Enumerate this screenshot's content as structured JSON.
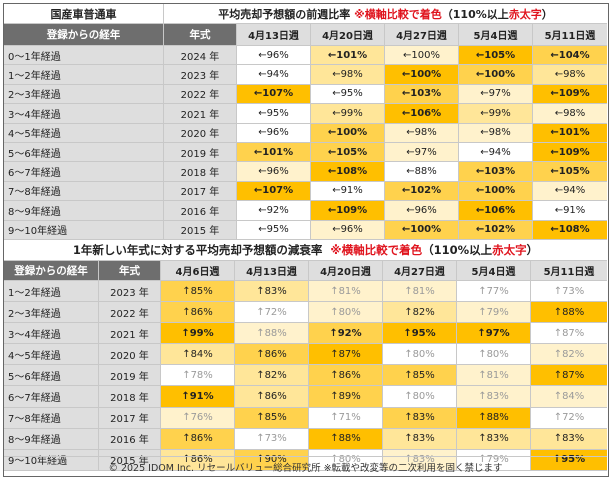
{
  "colors": {
    "header_gray": "#6e6e6e",
    "label_gray": "#dedede",
    "red_accent": "#e0141e",
    "level_0": "#ffffff",
    "level_1": "#fff2cc",
    "level_2": "#ffe699",
    "level_3": "#ffd24d",
    "level_4": "#ffbf00"
  },
  "top": {
    "title_left": "国産車普通車",
    "title_main": "平均売却予想額の前週比率",
    "title_note": "※横軸比較で着色",
    "title_paren_open": "（110%以上 ",
    "title_red": "赤太字",
    "title_paren_close": "）",
    "header": {
      "col1": "登録からの経年",
      "col2": "年式",
      "weeks": [
        "4月13日週",
        "4月20日週",
        "4月27日週",
        "5月4日週",
        "5月11日週"
      ]
    },
    "rows": [
      {
        "age": "0～1年経過",
        "year": "2024 年",
        "cells": [
          [
            "←96%",
            0,
            0
          ],
          [
            "←101%",
            2,
            1
          ],
          [
            "←100%",
            1,
            0
          ],
          [
            "←105%",
            4,
            1
          ],
          [
            "←104%",
            3,
            1
          ]
        ]
      },
      {
        "age": "1～2年経過",
        "year": "2023 年",
        "cells": [
          [
            "←94%",
            0,
            0
          ],
          [
            "←98%",
            2,
            0
          ],
          [
            "←100%",
            4,
            1
          ],
          [
            "←100%",
            3,
            1
          ],
          [
            "←98%",
            2,
            0
          ]
        ]
      },
      {
        "age": "2～3年経過",
        "year": "2022 年",
        "cells": [
          [
            "←107%",
            4,
            1
          ],
          [
            "←95%",
            0,
            0
          ],
          [
            "←103%",
            3,
            1
          ],
          [
            "←97%",
            1,
            0
          ],
          [
            "←109%",
            4,
            1
          ]
        ]
      },
      {
        "age": "3～4年経過",
        "year": "2021 年",
        "cells": [
          [
            "←95%",
            0,
            0
          ],
          [
            "←99%",
            2,
            0
          ],
          [
            "←106%",
            4,
            1
          ],
          [
            "←99%",
            2,
            0
          ],
          [
            "←98%",
            1,
            0
          ]
        ]
      },
      {
        "age": "4～5年経過",
        "year": "2020 年",
        "cells": [
          [
            "←96%",
            0,
            0
          ],
          [
            "←100%",
            3,
            1
          ],
          [
            "←98%",
            1,
            0
          ],
          [
            "←98%",
            1,
            0
          ],
          [
            "←101%",
            4,
            1
          ]
        ]
      },
      {
        "age": "5～6年経過",
        "year": "2019 年",
        "cells": [
          [
            "←101%",
            3,
            1
          ],
          [
            "←105%",
            3,
            1
          ],
          [
            "←97%",
            1,
            0
          ],
          [
            "←94%",
            0,
            0
          ],
          [
            "←109%",
            4,
            1
          ]
        ]
      },
      {
        "age": "6～7年経過",
        "year": "2018 年",
        "cells": [
          [
            "←96%",
            1,
            0
          ],
          [
            "←108%",
            4,
            1
          ],
          [
            "←88%",
            0,
            0
          ],
          [
            "←103%",
            3,
            1
          ],
          [
            "←105%",
            3,
            1
          ]
        ]
      },
      {
        "age": "7～8年経過",
        "year": "2017 年",
        "cells": [
          [
            "←107%",
            4,
            1
          ],
          [
            "←91%",
            0,
            0
          ],
          [
            "←102%",
            3,
            1
          ],
          [
            "←100%",
            3,
            1
          ],
          [
            "←94%",
            1,
            0
          ]
        ]
      },
      {
        "age": "8～9年経過",
        "year": "2016 年",
        "cells": [
          [
            "←92%",
            0,
            0
          ],
          [
            "←109%",
            4,
            1
          ],
          [
            "←96%",
            1,
            0
          ],
          [
            "←106%",
            4,
            1
          ],
          [
            "←91%",
            0,
            0
          ]
        ]
      },
      {
        "age": "9～10年経過",
        "year": "2015 年",
        "cells": [
          [
            "←95%",
            0,
            0
          ],
          [
            "←96%",
            1,
            0
          ],
          [
            "←100%",
            3,
            1
          ],
          [
            "←102%",
            3,
            1
          ],
          [
            "←108%",
            4,
            1
          ]
        ]
      }
    ]
  },
  "bottom": {
    "title_main": "1年新しい年式に対する平均売却予想額の減衰率",
    "title_note": "※横軸比較で着色",
    "title_paren_open": "（110%以上 ",
    "title_red": "赤太字",
    "title_paren_close": "）",
    "header": {
      "col1": "登録からの経年",
      "col2": "年式",
      "weeks": [
        "4月6日週",
        "4月13日週",
        "4月20日週",
        "4月27日週",
        "5月4日週",
        "5月11日週"
      ]
    },
    "rows": [
      {
        "age": "1～2年経過",
        "year": "2023 年",
        "cells": [
          [
            "↑85%",
            3,
            0
          ],
          [
            "↑83%",
            2,
            0
          ],
          [
            "↑81%",
            1,
            0
          ],
          [
            "↑81%",
            1,
            0
          ],
          [
            "↑77%",
            0,
            0
          ],
          [
            "↑73%",
            0,
            0
          ]
        ]
      },
      {
        "age": "2～3年経過",
        "year": "2022 年",
        "cells": [
          [
            "↑86%",
            3,
            0
          ],
          [
            "↑72%",
            0,
            0
          ],
          [
            "↑80%",
            1,
            0
          ],
          [
            "↑82%",
            2,
            0
          ],
          [
            "↑79%",
            1,
            0
          ],
          [
            "↑88%",
            4,
            0
          ]
        ]
      },
      {
        "age": "3～4年経過",
        "year": "2021 年",
        "cells": [
          [
            "↑99%",
            4,
            1
          ],
          [
            "↑88%",
            1,
            0
          ],
          [
            "↑92%",
            3,
            1
          ],
          [
            "↑95%",
            4,
            1
          ],
          [
            "↑97%",
            4,
            1
          ],
          [
            "↑87%",
            0,
            0
          ]
        ]
      },
      {
        "age": "4～5年経過",
        "year": "2020 年",
        "cells": [
          [
            "↑84%",
            2,
            0
          ],
          [
            "↑86%",
            3,
            0
          ],
          [
            "↑87%",
            4,
            0
          ],
          [
            "↑80%",
            0,
            0
          ],
          [
            "↑80%",
            0,
            0
          ],
          [
            "↑82%",
            1,
            0
          ]
        ]
      },
      {
        "age": "5～6年経過",
        "year": "2019 年",
        "cells": [
          [
            "↑78%",
            0,
            0
          ],
          [
            "↑82%",
            2,
            0
          ],
          [
            "↑86%",
            3,
            0
          ],
          [
            "↑85%",
            3,
            0
          ],
          [
            "↑81%",
            1,
            0
          ],
          [
            "↑87%",
            4,
            0
          ]
        ]
      },
      {
        "age": "6～7年経過",
        "year": "2018 年",
        "cells": [
          [
            "↑91%",
            4,
            1
          ],
          [
            "↑86%",
            2,
            0
          ],
          [
            "↑89%",
            3,
            0
          ],
          [
            "↑80%",
            0,
            0
          ],
          [
            "↑83%",
            1,
            0
          ],
          [
            "↑84%",
            1,
            0
          ]
        ]
      },
      {
        "age": "7～8年経過",
        "year": "2017 年",
        "cells": [
          [
            "↑76%",
            1,
            0
          ],
          [
            "↑85%",
            3,
            0
          ],
          [
            "↑71%",
            0,
            0
          ],
          [
            "↑83%",
            3,
            0
          ],
          [
            "↑88%",
            4,
            0
          ],
          [
            "↑72%",
            0,
            0
          ]
        ]
      },
      {
        "age": "8～9年経過",
        "year": "2016 年",
        "cells": [
          [
            "↑86%",
            3,
            0
          ],
          [
            "↑73%",
            0,
            0
          ],
          [
            "↑88%",
            4,
            0
          ],
          [
            "↑83%",
            2,
            0
          ],
          [
            "↑83%",
            2,
            0
          ],
          [
            "↑83%",
            2,
            0
          ]
        ]
      },
      {
        "age": "9～10年経過",
        "year": "2015 年",
        "cells": [
          [
            "↑86%",
            2,
            0
          ],
          [
            "↑90%",
            3,
            0
          ],
          [
            "↑80%",
            0,
            0
          ],
          [
            "↑83%",
            1,
            0
          ],
          [
            "↑79%",
            0,
            0
          ],
          [
            "↑95%",
            4,
            1
          ]
        ]
      }
    ]
  },
  "footer": "© 2025 IDOM Inc. リセールバリュー総合研究所 ※転載や改変等の二次利用を固く禁じます"
}
